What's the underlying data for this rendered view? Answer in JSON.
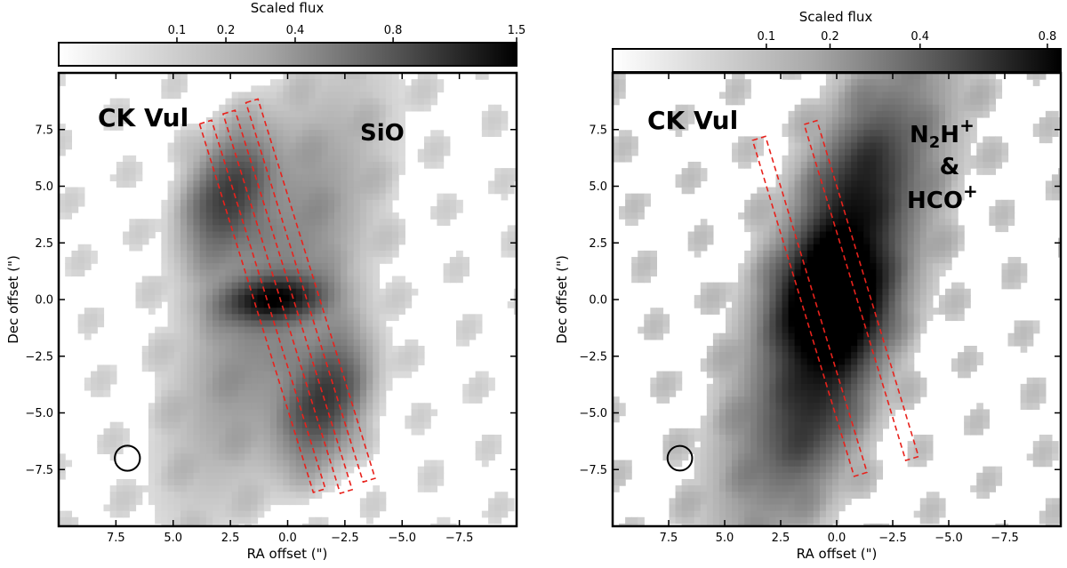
{
  "chart_data": [
    {
      "type": "heatmap",
      "name": "CK Vul SiO map",
      "xlabel": "RA offset (\")",
      "ylabel": "Dec offset (\")",
      "xlim": [
        10,
        -10
      ],
      "ylim": [
        -10,
        10
      ],
      "x_ticks": [
        7.5,
        5.0,
        2.5,
        0.0,
        -2.5,
        -5.0,
        -7.5
      ],
      "x_tick_labels": [
        "7.5",
        "5.0",
        "2.5",
        "0.0",
        "−2.5",
        "−5.0",
        "−7.5"
      ],
      "y_ticks": [
        7.5,
        5.0,
        2.5,
        0.0,
        -2.5,
        -5.0,
        -7.5
      ],
      "y_tick_labels": [
        "7.5",
        "5.0",
        "2.5",
        "0.0",
        "−2.5",
        "−5.0",
        "−7.5"
      ],
      "colorbar": {
        "title": "Scaled flux",
        "range": [
          0,
          1.5
        ],
        "ticks": [
          0.1,
          0.2,
          0.4,
          0.8,
          1.5
        ],
        "tick_labels": [
          "0.1",
          "0.2",
          "0.4",
          "0.8",
          "1.5"
        ]
      },
      "annotations": {
        "object": "CK Vul",
        "species": "SiO"
      },
      "emission_blobs": [
        {
          "ra": 2.6,
          "dec": 4.6,
          "sigma_major": 1.8,
          "sigma_minor": 1.0,
          "pa_deg": 20,
          "amp": 0.85
        },
        {
          "ra": 0.6,
          "dec": 0.0,
          "sigma_major": 1.4,
          "sigma_minor": 0.6,
          "pa_deg": 85,
          "amp": 1.2
        },
        {
          "ra": -1.6,
          "dec": -4.4,
          "sigma_major": 1.8,
          "sigma_minor": 1.0,
          "pa_deg": 20,
          "amp": 0.9
        },
        {
          "ra": 0.5,
          "dec": 0.5,
          "sigma_major": 5.5,
          "sigma_minor": 1.8,
          "pa_deg": 20,
          "amp": 0.35
        }
      ],
      "slits": [
        {
          "center_ra": 1.1,
          "center_dec": -0.3,
          "length": 17.0,
          "width": 0.55,
          "pa_deg": 17
        },
        {
          "center_ra": 0.0,
          "center_dec": -0.1,
          "length": 17.5,
          "width": 0.55,
          "pa_deg": 17
        },
        {
          "center_ra": -1.0,
          "center_dec": 0.4,
          "length": 17.5,
          "width": 0.55,
          "pa_deg": 17
        }
      ],
      "beam": {
        "ra": 7.0,
        "dec": -7.0,
        "diameter": 1.0
      }
    },
    {
      "type": "heatmap",
      "name": "CK Vul N2H+ & HCO+ map",
      "xlabel": "RA offset (\")",
      "ylabel": "Dec offset (\")",
      "xlim": [
        10,
        -10
      ],
      "ylim": [
        -10,
        10
      ],
      "x_ticks": [
        7.5,
        5.0,
        2.5,
        0.0,
        -2.5,
        -5.0,
        -7.5
      ],
      "x_tick_labels": [
        "7.5",
        "5.0",
        "2.5",
        "0.0",
        "−2.5",
        "−5.0",
        "−7.5"
      ],
      "y_ticks": [
        7.5,
        5.0,
        2.5,
        0.0,
        -2.5,
        -5.0,
        -7.5
      ],
      "y_tick_labels": [
        "7.5",
        "5.0",
        "2.5",
        "0.0",
        "−2.5",
        "−5.0",
        "−7.5"
      ],
      "colorbar": {
        "title": "Scaled flux",
        "range": [
          0,
          0.85
        ],
        "ticks": [
          0.1,
          0.2,
          0.4,
          0.8
        ],
        "tick_labels": [
          "0.1",
          "0.2",
          "0.4",
          "0.8"
        ]
      },
      "annotations": {
        "object": "CK Vul",
        "species_line1_main": "N",
        "species_line1_sub": "2",
        "species_line1_rest": "H",
        "species_line1_sup": "+",
        "species_line2": "&",
        "species_line3_main": "HCO",
        "species_line3_sup": "+"
      },
      "emission_blobs": [
        {
          "ra": 0.2,
          "dec": 0.0,
          "sigma_major": 1.6,
          "sigma_minor": 1.3,
          "pa_deg": 20,
          "amp": 1.3
        },
        {
          "ra": 0.0,
          "dec": 0.5,
          "sigma_major": 6.5,
          "sigma_minor": 1.8,
          "pa_deg": 20,
          "amp": 0.45
        },
        {
          "ra": -0.8,
          "dec": 4.5,
          "sigma_major": 2.5,
          "sigma_minor": 1.2,
          "pa_deg": 20,
          "amp": 0.35
        },
        {
          "ra": 0.8,
          "dec": -4.5,
          "sigma_major": 2.5,
          "sigma_minor": 1.2,
          "pa_deg": 20,
          "amp": 0.3
        }
      ],
      "slits": [
        {
          "center_ra": 1.2,
          "center_dec": -0.3,
          "length": 15.5,
          "width": 0.6,
          "pa_deg": 17
        },
        {
          "center_ra": -1.1,
          "center_dec": 0.4,
          "length": 15.5,
          "width": 0.6,
          "pa_deg": 17
        }
      ],
      "beam": {
        "ra": 7.0,
        "dec": -7.0,
        "diameter": 1.0
      }
    }
  ]
}
